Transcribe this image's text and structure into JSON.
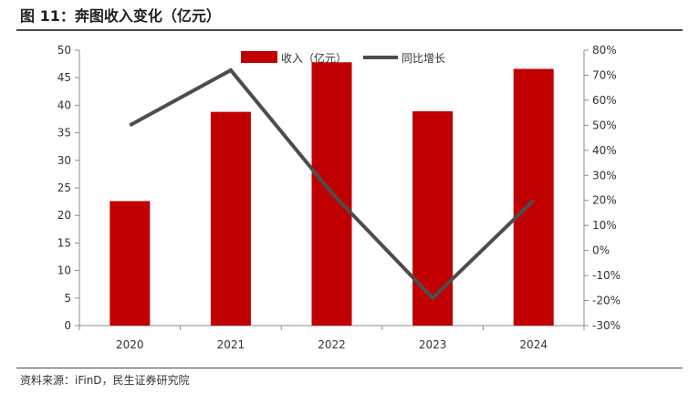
{
  "header": {
    "title": "图 11：奔图收入变化（亿元）"
  },
  "footer": {
    "source": "资料来源：iFinD，民生证券研究院"
  },
  "chart_data": {
    "type": "bar",
    "categories": [
      "2020",
      "2021",
      "2022",
      "2023",
      "2024"
    ],
    "series": [
      {
        "name": "收入（亿元）",
        "type": "bar",
        "axis": "left",
        "values": [
          22.6,
          38.8,
          47.8,
          38.9,
          46.6
        ]
      },
      {
        "name": "同比增长",
        "type": "line",
        "axis": "right",
        "values": [
          50,
          72,
          23,
          -19,
          20
        ]
      }
    ],
    "y_left": {
      "ylim": [
        0,
        50
      ],
      "ticks": [
        "0",
        "5",
        "10",
        "15",
        "20",
        "25",
        "30",
        "35",
        "40",
        "45",
        "50"
      ]
    },
    "y_right": {
      "ylim": [
        -30,
        80
      ],
      "ticks": [
        "-30%",
        "-20%",
        "-10%",
        "0%",
        "10%",
        "20%",
        "30%",
        "40%",
        "50%",
        "60%",
        "70%",
        "80%"
      ]
    },
    "colors": {
      "bar": "#c00000",
      "line": "#4d4d4d"
    },
    "legend": "top-center",
    "grid": false
  }
}
